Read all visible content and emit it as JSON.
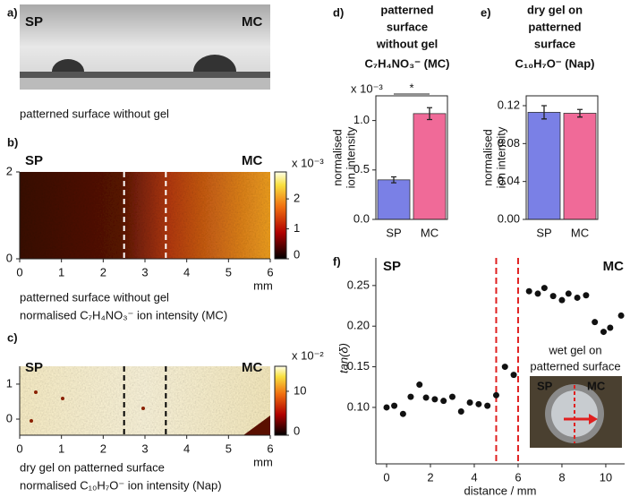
{
  "panel_a": {
    "label": "a)",
    "left_label": "SP",
    "right_label": "MC",
    "caption": "patterned surface without gel"
  },
  "chart_data": [
    {
      "type": "heatmap",
      "label": "b)",
      "left_label": "SP",
      "right_label": "MC",
      "xlim": [
        0,
        6
      ],
      "xticks": [
        0,
        1,
        2,
        3,
        4,
        5,
        6
      ],
      "xlabel": "mm",
      "ylim": [
        0,
        2
      ],
      "yticks": [
        0,
        2
      ],
      "colorbar": {
        "lim": [
          0,
          2.9
        ],
        "ticks": [
          0,
          1,
          2
        ],
        "multiplier": "x 10⁻³"
      },
      "divider_lines": [
        2.5,
        3.5
      ],
      "divider_color": "#ffffff",
      "caption": [
        "patterned surface without gel",
        "normalised C₇H₄NO₃⁻ ion intensity (MC)"
      ]
    },
    {
      "type": "heatmap",
      "label": "c)",
      "left_label": "SP",
      "right_label": "MC",
      "xlim": [
        0,
        6
      ],
      "xticks": [
        0,
        1,
        2,
        3,
        4,
        5,
        6
      ],
      "xlabel": "mm",
      "ylim": [
        -0.46,
        1.51
      ],
      "yticks": [
        0,
        1
      ],
      "colorbar": {
        "lim": [
          0,
          15.7
        ],
        "ticks": [
          0,
          10
        ],
        "multiplier": "x 10⁻²"
      },
      "divider_lines": [
        2.5,
        3.5
      ],
      "divider_color": "#000000",
      "caption": [
        "dry gel on patterned surface",
        "normalised C₁₀H₇O⁻ ion intensity (Nap)"
      ]
    },
    {
      "type": "bar",
      "label": "d)",
      "title": [
        "patterned",
        "surface",
        "without gel",
        "C₇H₄NO₃⁻ (MC)"
      ],
      "ylabel": [
        "normalised",
        "ion intensity"
      ],
      "multiplier": "x 10⁻³",
      "categories": [
        "SP",
        "MC"
      ],
      "values": [
        0.4,
        1.07
      ],
      "errors": [
        0.03,
        0.06
      ],
      "colors": [
        "#7a80e6",
        "#f06a98"
      ],
      "ylim": [
        0,
        1.25
      ],
      "yticks": [
        {
          "value": 0,
          "label": "0.0"
        },
        0.5,
        {
          "value": 1,
          "label": "1.0"
        }
      ],
      "significance": "*"
    },
    {
      "type": "bar",
      "label": "e)",
      "title": [
        "dry gel on",
        "patterned",
        "surface",
        "C₁₀H₇O⁻ (Nap)"
      ],
      "ylabel": [
        "normalised",
        "ion intensity"
      ],
      "categories": [
        "SP",
        "MC"
      ],
      "values": [
        0.113,
        0.112
      ],
      "errors": [
        0.007,
        0.004
      ],
      "colors": [
        "#7a80e6",
        "#f06a98"
      ],
      "ylim": [
        0,
        0.1304
      ],
      "yticks": [
        {
          "value": 0,
          "label": "0.00"
        },
        0.04,
        0.08,
        0.12
      ]
    },
    {
      "type": "scatter",
      "label": "f)",
      "left_label": "SP",
      "right_label": "MC",
      "xlabel": "distance / mm",
      "ylabel": "tan(δ)",
      "annotation": [
        "wet gel on",
        "patterned surface"
      ],
      "inset_labels": [
        "SP",
        "MC"
      ],
      "x": [
        0,
        0.35,
        0.75,
        1.1,
        1.5,
        1.8,
        2.2,
        2.6,
        3.0,
        3.4,
        3.8,
        4.2,
        4.6,
        5.0,
        5.4,
        5.8,
        6.5,
        6.9,
        7.2,
        7.6,
        8.0,
        8.3,
        8.7,
        9.1,
        9.5,
        9.9,
        10.2,
        10.7
      ],
      "y": [
        0.1,
        0.102,
        0.092,
        0.113,
        0.128,
        0.112,
        0.11,
        0.108,
        0.113,
        0.095,
        0.106,
        0.104,
        0.102,
        0.115,
        0.15,
        0.14,
        0.243,
        0.24,
        0.247,
        0.237,
        0.232,
        0.24,
        0.235,
        0.238,
        0.205,
        0.193,
        0.198,
        0.213
      ],
      "color": "#111111",
      "xlim": [
        -0.49,
        10.86
      ],
      "xticks": [
        0,
        2,
        4,
        6,
        8,
        10
      ],
      "ylim": [
        0.0305,
        0.284
      ],
      "yticks": [
        {
          "value": 0.1,
          "label": "0.10"
        },
        0.15,
        {
          "value": 0.2,
          "label": "0.20"
        },
        0.25
      ],
      "divider_lines": [
        5,
        6
      ],
      "divider_color": "#e02020"
    }
  ]
}
